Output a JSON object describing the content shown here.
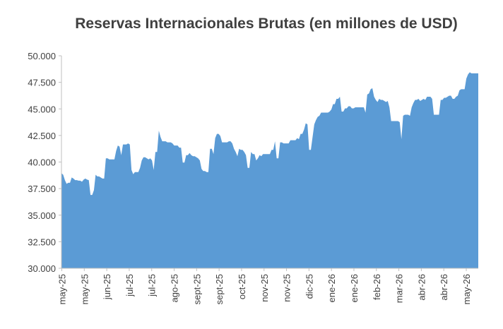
{
  "chart_data": {
    "type": "area",
    "title": "Reservas Internacionales Brutas (en millones de USD)",
    "xlabel": "",
    "ylabel": "",
    "ylim": [
      30000,
      50000
    ],
    "yticks": [
      30000,
      32500,
      35000,
      37500,
      40000,
      42500,
      45000,
      47500,
      50000
    ],
    "ytick_labels": [
      "30.000",
      "32.500",
      "35.000",
      "37.500",
      "40.000",
      "42.500",
      "45.000",
      "47.500",
      "50.000"
    ],
    "xtick_labels": [
      "may-25",
      "may-25",
      "jun-25",
      "jul-25",
      "jul-25",
      "ago-25",
      "sept-25",
      "sept-25",
      "oct-25",
      "nov-25",
      "nov-25",
      "dic-25",
      "ene-26",
      "ene-26",
      "feb-26",
      "mar-26",
      "abr-26",
      "abr-26",
      "may-26"
    ],
    "grid": false,
    "legend": "none",
    "color": "#5b9bd5",
    "values": [
      38950,
      38800,
      38300,
      37950,
      38050,
      38050,
      38550,
      38450,
      38300,
      38300,
      38250,
      38250,
      38150,
      38350,
      38450,
      38350,
      38300,
      36900,
      36900,
      37350,
      38800,
      38650,
      38650,
      38550,
      38450,
      38450,
      40350,
      40350,
      40250,
      40250,
      40250,
      40250,
      41050,
      41550,
      41450,
      40650,
      41650,
      41650,
      41650,
      41750,
      41650,
      39250,
      38850,
      39050,
      39050,
      39050,
      39450,
      40150,
      40450,
      40450,
      40350,
      40250,
      40350,
      40150,
      39250,
      40950,
      40950,
      42950,
      42350,
      41950,
      41950,
      41950,
      41850,
      41850,
      41850,
      41750,
      41550,
      41550,
      41550,
      41350,
      41350,
      39950,
      39950,
      40650,
      40650,
      40850,
      40650,
      40550,
      40550,
      40450,
      40350,
      40150,
      39350,
      39150,
      39150,
      39050,
      39050,
      41250,
      41250,
      40750,
      42250,
      42650,
      42650,
      42450,
      41850,
      41850,
      41850,
      41850,
      41950,
      41950,
      41750,
      41250,
      40950,
      40550,
      41250,
      41150,
      41150,
      40950,
      40650,
      39450,
      39450,
      40950,
      40750,
      40750,
      40150,
      40350,
      40650,
      40550,
      40750,
      40750,
      40750,
      40750,
      40750,
      41150,
      41150,
      41950,
      40350,
      40350,
      41850,
      41850,
      41750,
      41750,
      41750,
      41750,
      42050,
      42050,
      42050,
      42050,
      42250,
      42150,
      42650,
      42650,
      43050,
      43650,
      43550,
      41150,
      41150,
      42350,
      43550,
      43950,
      44250,
      44350,
      44650,
      44650,
      44650,
      44650,
      44650,
      44750,
      44950,
      45450,
      45450,
      45950,
      45950,
      46150,
      44750,
      44750,
      45050,
      45050,
      45250,
      45250,
      45050,
      45050,
      45150,
      45150,
      45150,
      45150,
      45150,
      45150,
      44650,
      46350,
      46450,
      46850,
      46950,
      46150,
      45850,
      45650,
      45950,
      45850,
      45850,
      45750,
      45650,
      45750,
      45150,
      43850,
      43850,
      43850,
      43850,
      43850,
      43750,
      42150,
      44350,
      44450,
      44450,
      44450,
      44350,
      45150,
      45550,
      45850,
      45850,
      45950,
      45750,
      45850,
      45950,
      45850,
      46150,
      46150,
      46150,
      45950,
      44450,
      44450,
      44450,
      44450,
      45850,
      45850,
      46050,
      46050,
      46150,
      46250,
      46250,
      45950,
      45950,
      46150,
      46250,
      46750,
      46850,
      46850,
      46850,
      47850,
      48250,
      48450,
      48350,
      48350,
      48350,
      48350,
      48350
    ]
  }
}
